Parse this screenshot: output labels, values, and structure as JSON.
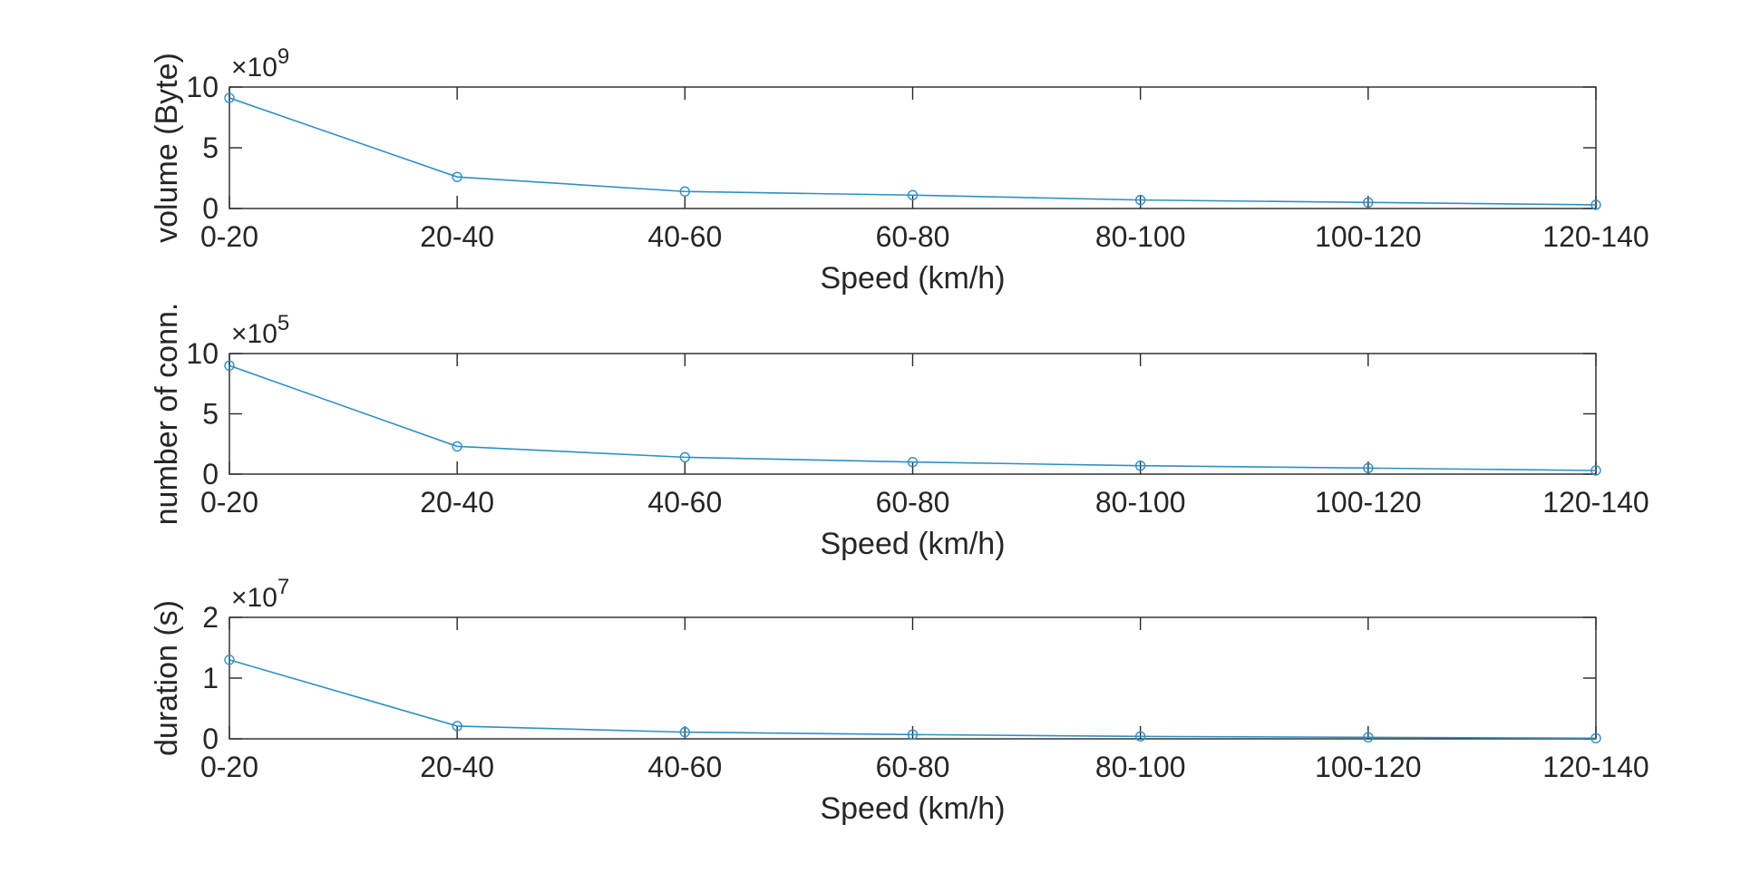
{
  "chart_data": [
    {
      "type": "line",
      "categories": [
        "0-20",
        "20-40",
        "40-60",
        "60-80",
        "80-100",
        "100-120",
        "120-140"
      ],
      "series": [
        {
          "values": [
            9.1,
            2.6,
            1.4,
            1.1,
            0.7,
            0.5,
            0.3
          ]
        }
      ],
      "xlabel": "Speed (km/h)",
      "ylabel": "volume (Byte)",
      "exponent": "9",
      "ylim": [
        0,
        10
      ],
      "yticks": [
        "0",
        "5",
        "10"
      ],
      "grid": false,
      "color": "#2f8fc4"
    },
    {
      "type": "line",
      "categories": [
        "0-20",
        "20-40",
        "40-60",
        "60-80",
        "80-100",
        "100-120",
        "120-140"
      ],
      "series": [
        {
          "values": [
            9.0,
            2.3,
            1.4,
            1.0,
            0.7,
            0.5,
            0.3
          ]
        }
      ],
      "xlabel": "Speed (km/h)",
      "ylabel": "number of conn.",
      "exponent": "5",
      "ylim": [
        0,
        10
      ],
      "yticks": [
        "0",
        "5",
        "10"
      ],
      "grid": false,
      "color": "#2f8fc4"
    },
    {
      "type": "line",
      "categories": [
        "0-20",
        "20-40",
        "40-60",
        "60-80",
        "80-100",
        "100-120",
        "120-140"
      ],
      "series": [
        {
          "values": [
            1.3,
            0.21,
            0.11,
            0.07,
            0.04,
            0.025,
            0.01
          ]
        }
      ],
      "xlabel": "Speed (km/h)",
      "ylabel": "duration (s)",
      "exponent": "7",
      "ylim": [
        0,
        2
      ],
      "yticks": [
        "0",
        "1",
        "2"
      ],
      "grid": false,
      "color": "#2f8fc4"
    }
  ]
}
